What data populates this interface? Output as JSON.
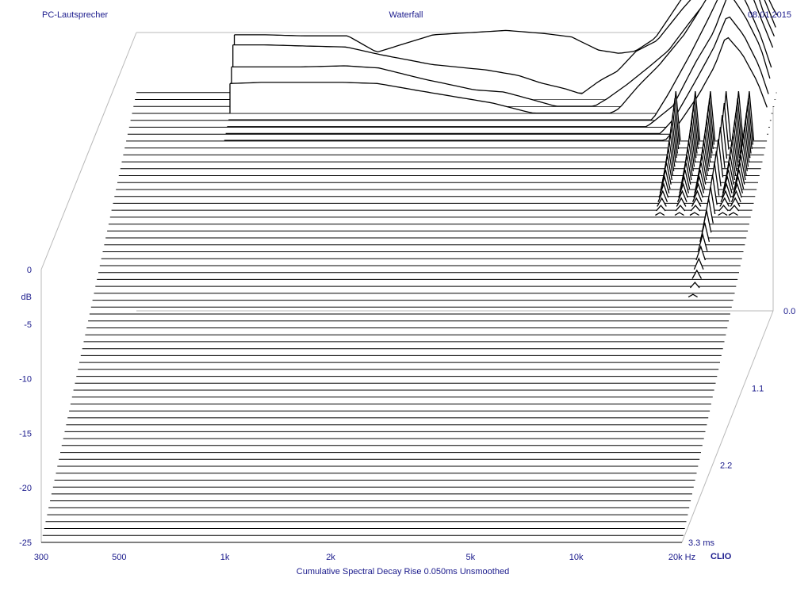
{
  "header": {
    "left": "PC-Lautsprecher",
    "center": "Waterfall",
    "right": "08.01.2015"
  },
  "footer": {
    "caption": "Cumulative Spectral Decay   Rise 0.050ms   Unsmoothed",
    "brand": "CLIO"
  },
  "colors": {
    "text": "#1a1a8c",
    "trace": "#000000",
    "frame": "#b8b8b8",
    "background": "#ffffff"
  },
  "chart_data": {
    "type": "waterfall",
    "title": "Waterfall",
    "subtitle": "Cumulative Spectral Decay   Rise 0.050ms   Unsmoothed",
    "x_axis": {
      "scale": "log",
      "range": [
        300,
        20000
      ],
      "ticks": [
        {
          "value": 300,
          "label": "300"
        },
        {
          "value": 500,
          "label": "500"
        },
        {
          "value": 1000,
          "label": "1k"
        },
        {
          "value": 2000,
          "label": "2k"
        },
        {
          "value": 5000,
          "label": "5k"
        },
        {
          "value": 10000,
          "label": "10k"
        },
        {
          "value": 20000,
          "label": "20k Hz"
        }
      ]
    },
    "y_axis": {
      "label": "dB",
      "range": [
        -25,
        0
      ],
      "ticks": [
        {
          "value": 0,
          "label": "0"
        },
        {
          "value": -5,
          "label": "-5"
        },
        {
          "value": -10,
          "label": "-10"
        },
        {
          "value": -15,
          "label": "-15"
        },
        {
          "value": -20,
          "label": "-20"
        },
        {
          "value": -25,
          "label": "-25"
        }
      ]
    },
    "z_axis": {
      "unit": "ms",
      "range": [
        0,
        3.3
      ],
      "ticks": [
        {
          "value": 0,
          "label": "0.0"
        },
        {
          "value": 1.1,
          "label": "1.1"
        },
        {
          "value": 2.2,
          "label": "2.2"
        },
        {
          "value": 3.3,
          "label": "3.3  ms"
        }
      ]
    },
    "slice_count": 66,
    "slices": [
      {
        "t": 0.0,
        "points": [
          [
            570,
            0.3
          ],
          [
            700,
            0.3
          ],
          [
            900,
            0.2
          ],
          [
            1200,
            0.2
          ],
          [
            1450,
            -1.3
          ],
          [
            2100,
            0.3
          ],
          [
            3400,
            0.7
          ],
          [
            4400,
            0.4
          ],
          [
            5200,
            0.1
          ],
          [
            6200,
            -1.1
          ],
          [
            7100,
            -1.4
          ],
          [
            7900,
            -1.2
          ],
          [
            9000,
            0.0
          ],
          [
            10800,
            3.8
          ],
          [
            12800,
            5.9
          ],
          [
            14800,
            9.1
          ],
          [
            15300,
            12.0
          ],
          [
            16000,
            9.6
          ],
          [
            16700,
            9.1
          ],
          [
            17500,
            8.0
          ],
          [
            18100,
            6.0
          ],
          [
            19100,
            3.2
          ],
          [
            20000,
            2.1
          ]
        ]
      },
      {
        "t": 0.05,
        "points": [
          [
            570,
            -0.3
          ],
          [
            700,
            -0.3
          ],
          [
            900,
            -0.4
          ],
          [
            1200,
            -0.5
          ],
          [
            1500,
            -1.2
          ],
          [
            2100,
            -2.1
          ],
          [
            3000,
            -2.6
          ],
          [
            3700,
            -3.1
          ],
          [
            4300,
            -3.8
          ],
          [
            5000,
            -4.3
          ],
          [
            5600,
            -4.8
          ],
          [
            6300,
            -3.6
          ],
          [
            7100,
            -2.7
          ],
          [
            8000,
            -0.9
          ],
          [
            9200,
            0.1
          ],
          [
            10800,
            2.9
          ],
          [
            12800,
            5.6
          ],
          [
            14500,
            7.9
          ],
          [
            15300,
            11.0
          ],
          [
            16500,
            8.2
          ],
          [
            17600,
            6.5
          ],
          [
            18500,
            4.0
          ],
          [
            20000,
            1.3
          ]
        ]
      },
      {
        "t": 0.1,
        "points": [
          [
            570,
            -2.0
          ],
          [
            700,
            -2.0
          ],
          [
            900,
            -2.0
          ],
          [
            1200,
            -1.9
          ],
          [
            1500,
            -2.1
          ],
          [
            2000,
            -3.1
          ],
          [
            2800,
            -4.1
          ],
          [
            3400,
            -4.3
          ],
          [
            4200,
            -5.1
          ],
          [
            5000,
            -5.8
          ],
          [
            5800,
            -6.1
          ],
          [
            6700,
            -4.9
          ],
          [
            7700,
            -3.5
          ],
          [
            8800,
            -2.0
          ],
          [
            10000,
            -0.5
          ],
          [
            11500,
            2.1
          ],
          [
            13000,
            4.3
          ],
          [
            14300,
            6.8
          ],
          [
            15300,
            9.8
          ],
          [
            16200,
            6.9
          ],
          [
            17500,
            5.8
          ],
          [
            18500,
            3.3
          ],
          [
            20000,
            0.8
          ]
        ]
      },
      {
        "t": 0.15,
        "points": [
          [
            570,
            -3.2
          ],
          [
            700,
            -3.1
          ],
          [
            900,
            -3.1
          ],
          [
            1200,
            -3.1
          ],
          [
            1500,
            -3.2
          ],
          [
            2000,
            -3.9
          ],
          [
            2700,
            -4.6
          ],
          [
            3200,
            -5.0
          ],
          [
            4000,
            -5.8
          ],
          [
            4800,
            -6.3
          ],
          [
            5600,
            -6.6
          ],
          [
            6500,
            -6.4
          ],
          [
            7300,
            -5.5
          ],
          [
            8300,
            -3.4
          ],
          [
            9500,
            -1.5
          ],
          [
            11200,
            1.3
          ],
          [
            12700,
            4.1
          ],
          [
            14000,
            6.4
          ],
          [
            15300,
            8.6
          ],
          [
            16300,
            5.5
          ],
          [
            17600,
            4.6
          ],
          [
            18600,
            2.6
          ],
          [
            20000,
            0.1
          ]
        ]
      },
      {
        "t": 0.2,
        "points": [
          [
            570,
            -8.5
          ],
          [
            700,
            -8.6
          ],
          [
            900,
            -8.8
          ],
          [
            1100,
            -8.6
          ],
          [
            1400,
            -7.6
          ],
          [
            1600,
            -6.5
          ],
          [
            1900,
            -7.3
          ],
          [
            2300,
            -8.3
          ],
          [
            2700,
            -7.7
          ],
          [
            3100,
            -8.0
          ],
          [
            3600,
            -7.9
          ],
          [
            4100,
            -8.1
          ],
          [
            4800,
            -9.4
          ],
          [
            5400,
            -9.5
          ],
          [
            6100,
            -8.0
          ],
          [
            6900,
            -8.3
          ],
          [
            7800,
            -6.7
          ],
          [
            8900,
            -6.9
          ],
          [
            10200,
            -3.8
          ],
          [
            11800,
            -0.1
          ],
          [
            13300,
            3.2
          ],
          [
            15300,
            7.3
          ],
          [
            17000,
            4.5
          ],
          [
            18700,
            1.4
          ],
          [
            20000,
            -1.4
          ]
        ]
      },
      {
        "t": 0.25,
        "points": [
          [
            570,
            -9.0
          ],
          [
            700,
            -9.1
          ],
          [
            900,
            -9.2
          ],
          [
            1100,
            -9.1
          ],
          [
            1400,
            -8.1
          ],
          [
            1600,
            -7.2
          ],
          [
            1900,
            -7.7
          ],
          [
            2300,
            -8.8
          ],
          [
            2700,
            -8.3
          ],
          [
            3100,
            -8.6
          ],
          [
            3600,
            -8.7
          ],
          [
            4100,
            -9.2
          ],
          [
            4800,
            -9.8
          ],
          [
            5500,
            -10.1
          ],
          [
            6200,
            -9.3
          ],
          [
            7000,
            -8.5
          ],
          [
            8000,
            -7.5
          ],
          [
            9200,
            -6.2
          ],
          [
            10600,
            -4.6
          ],
          [
            12300,
            -0.6
          ],
          [
            13800,
            2.1
          ],
          [
            15300,
            5.8
          ],
          [
            17000,
            3.6
          ],
          [
            18800,
            0.8
          ],
          [
            20000,
            -2.1
          ]
        ]
      },
      {
        "t": 0.3,
        "points": [
          [
            570,
            -10.6
          ],
          [
            700,
            -10.7
          ],
          [
            900,
            -10.7
          ],
          [
            1100,
            -10.6
          ],
          [
            1350,
            -10.0
          ],
          [
            1600,
            -9.4
          ],
          [
            2000,
            -9.9
          ],
          [
            2500,
            -10.2
          ],
          [
            3000,
            -10.5
          ],
          [
            3500,
            -10.3
          ],
          [
            4000,
            -10.5
          ],
          [
            4800,
            -11.0
          ],
          [
            5500,
            -11.3
          ],
          [
            6300,
            -11.4
          ],
          [
            7000,
            -10.9
          ],
          [
            8000,
            -9.5
          ],
          [
            9300,
            -7.7
          ],
          [
            10800,
            -5.4
          ],
          [
            12500,
            -1.8
          ],
          [
            14000,
            1.1
          ],
          [
            15300,
            4.1
          ],
          [
            17000,
            2.2
          ],
          [
            18800,
            -0.6
          ],
          [
            20000,
            -3.2
          ]
        ]
      },
      {
        "t": 0.35,
        "points": [
          [
            570,
            -11.4
          ],
          [
            700,
            -11.4
          ],
          [
            900,
            -11.5
          ],
          [
            1100,
            -11.4
          ],
          [
            1350,
            -10.8
          ],
          [
            1600,
            -10.5
          ],
          [
            2000,
            -10.9
          ],
          [
            2500,
            -11.2
          ],
          [
            3000,
            -11.4
          ],
          [
            3500,
            -11.1
          ],
          [
            4000,
            -11.6
          ],
          [
            4700,
            -12.1
          ],
          [
            5500,
            -12.5
          ],
          [
            6300,
            -12.4
          ],
          [
            7200,
            -11.7
          ],
          [
            8200,
            -10.1
          ],
          [
            9500,
            -8.4
          ],
          [
            11000,
            -6.0
          ],
          [
            12800,
            -2.9
          ],
          [
            14200,
            -0.3
          ],
          [
            15300,
            2.5
          ],
          [
            17000,
            0.8
          ],
          [
            18800,
            -1.8
          ],
          [
            20000,
            -4.1
          ]
        ]
      }
    ]
  }
}
